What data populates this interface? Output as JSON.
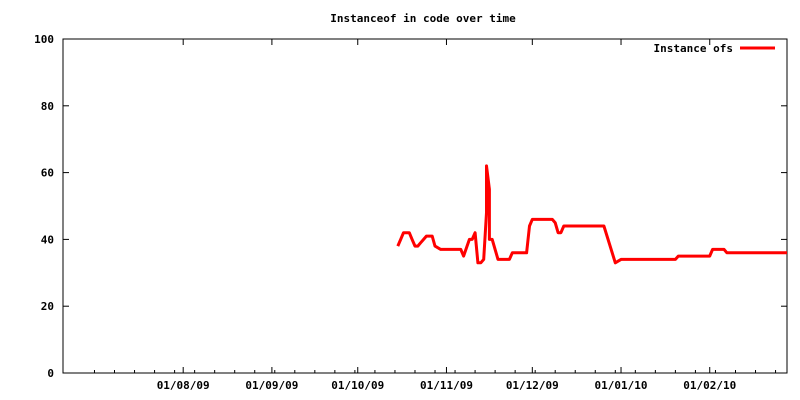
{
  "chart_data": {
    "type": "line",
    "title": "Instanceof in code over time",
    "xlabel": "",
    "ylabel": "",
    "xlim": [
      "2009-06-20",
      "2010-02-28"
    ],
    "ylim": [
      0,
      100
    ],
    "x_ticks": [
      {
        "date": "2009-08-01",
        "label": "01/08/09"
      },
      {
        "date": "2009-09-01",
        "label": "01/09/09"
      },
      {
        "date": "2009-10-01",
        "label": "01/10/09"
      },
      {
        "date": "2009-11-01",
        "label": "01/11/09"
      },
      {
        "date": "2009-12-01",
        "label": "01/12/09"
      },
      {
        "date": "2010-01-01",
        "label": "01/01/10"
      },
      {
        "date": "2010-02-01",
        "label": "01/02/10"
      }
    ],
    "y_ticks": [
      0,
      20,
      40,
      60,
      80,
      100
    ],
    "grid": false,
    "legend": "top-right",
    "series": [
      {
        "name": "Instance ofs",
        "color": "#ff0000",
        "points": [
          [
            "2009-10-15",
            38
          ],
          [
            "2009-10-16",
            40
          ],
          [
            "2009-10-17",
            42
          ],
          [
            "2009-10-19",
            42
          ],
          [
            "2009-10-20",
            40
          ],
          [
            "2009-10-21",
            38
          ],
          [
            "2009-10-22",
            38
          ],
          [
            "2009-10-23",
            39
          ],
          [
            "2009-10-24",
            40
          ],
          [
            "2009-10-25",
            41
          ],
          [
            "2009-10-27",
            41
          ],
          [
            "2009-10-28",
            38
          ],
          [
            "2009-10-30",
            37
          ],
          [
            "2009-11-06",
            37
          ],
          [
            "2009-11-07",
            35
          ],
          [
            "2009-11-09",
            40
          ],
          [
            "2009-11-10",
            40
          ],
          [
            "2009-11-11",
            42
          ],
          [
            "2009-11-12",
            33
          ],
          [
            "2009-11-13",
            33
          ],
          [
            "2009-11-14",
            34
          ],
          [
            "2009-11-15",
            48
          ],
          [
            "2009-11-15",
            62
          ],
          [
            "2009-11-16",
            55
          ],
          [
            "2009-11-16",
            40
          ],
          [
            "2009-11-17",
            40
          ],
          [
            "2009-11-18",
            37
          ],
          [
            "2009-11-19",
            34
          ],
          [
            "2009-11-23",
            34
          ],
          [
            "2009-11-24",
            36
          ],
          [
            "2009-11-29",
            36
          ],
          [
            "2009-11-30",
            44
          ],
          [
            "2009-12-01",
            46
          ],
          [
            "2009-12-08",
            46
          ],
          [
            "2009-12-09",
            45
          ],
          [
            "2009-12-10",
            42
          ],
          [
            "2009-12-11",
            42
          ],
          [
            "2009-12-12",
            44
          ],
          [
            "2009-12-26",
            44
          ],
          [
            "2009-12-30",
            33
          ],
          [
            "2010-01-01",
            34
          ],
          [
            "2010-01-20",
            34
          ],
          [
            "2010-01-21",
            35
          ],
          [
            "2010-02-01",
            35
          ],
          [
            "2010-02-02",
            37
          ],
          [
            "2010-02-06",
            37
          ],
          [
            "2010-02-07",
            36
          ],
          [
            "2010-02-28",
            36
          ]
        ]
      }
    ]
  }
}
